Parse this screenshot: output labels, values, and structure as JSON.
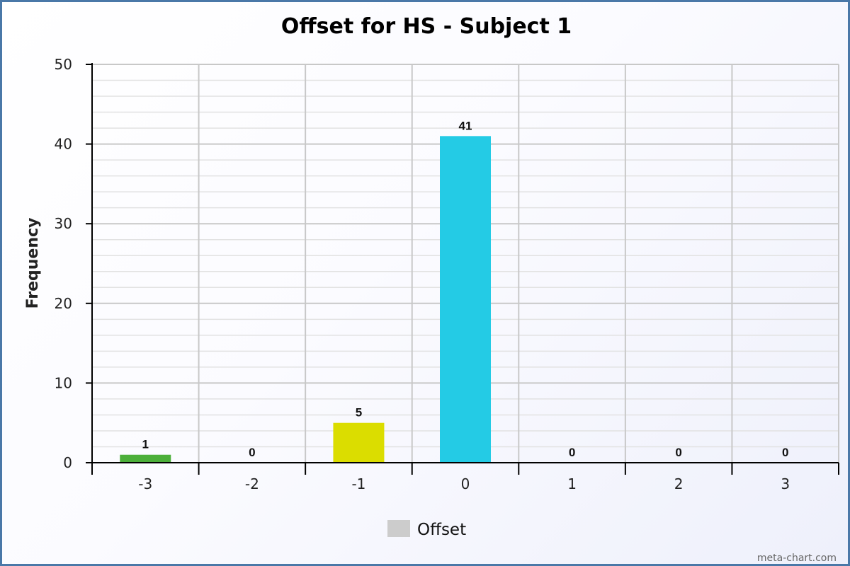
{
  "chart_data": {
    "type": "bar",
    "title": "Offset for HS - Subject 1",
    "xlabel": "",
    "ylabel": "Frequency",
    "categories": [
      "-3",
      "-2",
      "-1",
      "0",
      "1",
      "2",
      "3"
    ],
    "values": [
      1,
      0,
      5,
      41,
      0,
      0,
      0
    ],
    "value_labels": [
      "1",
      "0",
      "5",
      "41",
      "0",
      "0",
      "0"
    ],
    "bar_colors": [
      "#4caf3a",
      "#999999",
      "#dbdd00",
      "#24cbe5",
      "#999999",
      "#999999",
      "#999999"
    ],
    "ylim": [
      0,
      50
    ],
    "yticks": [
      0,
      10,
      20,
      30,
      40,
      50
    ],
    "minor_step": 2,
    "grid": true,
    "legend": {
      "position": "bottom",
      "entries": [
        {
          "label": "Offset",
          "color": "#cccccc"
        }
      ]
    }
  },
  "watermark": "meta-chart.com",
  "colors": {
    "frame_border": "#4a78a8",
    "grid_major": "#c8c8c8",
    "grid_minor": "#e2e2e2",
    "axis": "#000000"
  }
}
